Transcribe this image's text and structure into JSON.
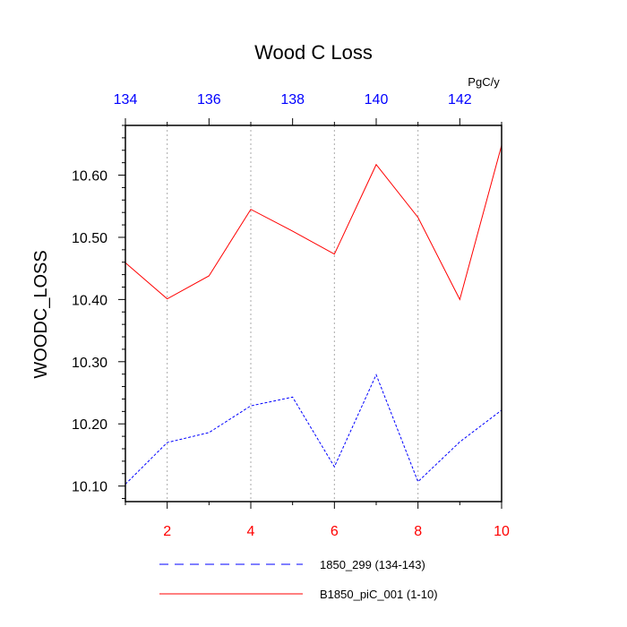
{
  "chart_data": {
    "type": "line",
    "title": "Wood C Loss",
    "ylabel": "WOODC_LOSS",
    "units": "PgC/y",
    "xlim_bottom": [
      1,
      10
    ],
    "xlim_top": [
      134,
      143
    ],
    "ylim": [
      10.075,
      10.68
    ],
    "x_bottom_ticks": [
      2,
      4,
      6,
      8,
      10
    ],
    "x_top_ticks": [
      134,
      136,
      138,
      140,
      142
    ],
    "y_ticks": [
      10.1,
      10.2,
      10.3,
      10.4,
      10.5,
      10.6
    ],
    "y_tick_labels": [
      "10.10",
      "10.20",
      "10.30",
      "10.40",
      "10.50",
      "10.60"
    ],
    "grid": "vertical dotted at bottom major ticks",
    "legend_position": "bottom",
    "colors": {
      "bottom_axis_labels": "#ff0000",
      "top_axis_labels": "#0000ff",
      "grid": "#aaaaaa"
    },
    "series": [
      {
        "name": "1850_299 (134-143)",
        "color": "#0000ff",
        "style": "dashed",
        "x": [
          1,
          2,
          3,
          4,
          5,
          6,
          7,
          8,
          9,
          10
        ],
        "values": [
          10.103,
          10.17,
          10.186,
          10.229,
          10.243,
          10.131,
          10.279,
          10.107,
          10.171,
          10.222
        ]
      },
      {
        "name": "B1850_piC_001 (1-10)",
        "color": "#ff0000",
        "style": "solid",
        "x": [
          1,
          2,
          3,
          4,
          5,
          6,
          7,
          8,
          9,
          10
        ],
        "values": [
          10.459,
          10.401,
          10.438,
          10.545,
          10.51,
          10.473,
          10.617,
          10.532,
          10.4,
          10.648
        ]
      }
    ]
  }
}
